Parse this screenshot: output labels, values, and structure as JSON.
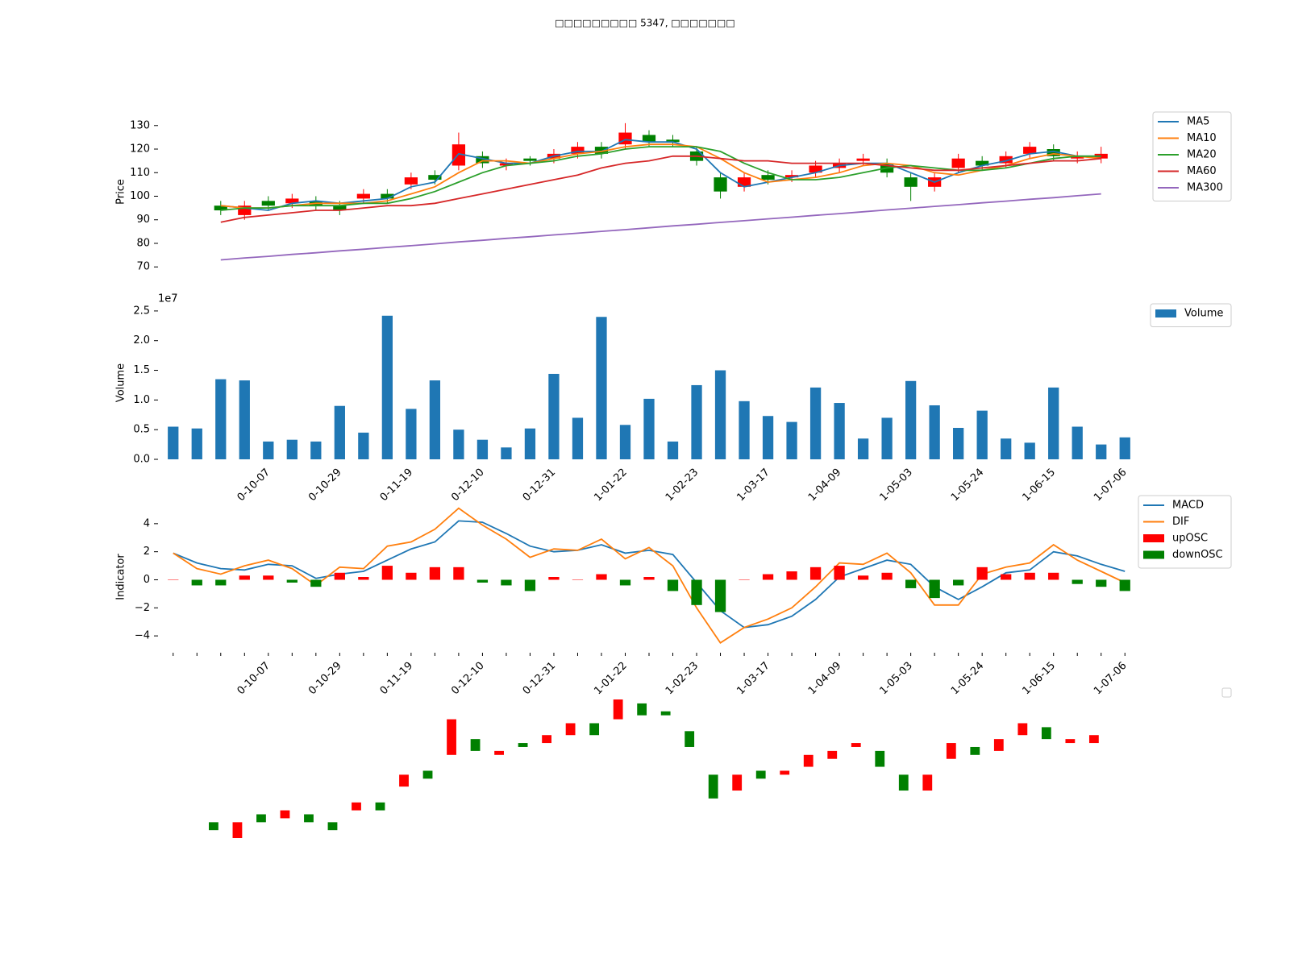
{
  "title": "□□□□□□□□□ 5347, □□□□□□□",
  "chart_data": [
    {
      "type": "candlestick",
      "ylabel": "Price",
      "up_color": "#ff0000",
      "down_color": "#008000",
      "open": [
        null,
        null,
        96,
        92,
        98,
        97,
        98,
        96,
        99,
        101,
        105,
        109,
        113,
        117,
        113,
        116,
        116,
        118,
        121,
        122,
        126,
        124,
        119,
        108,
        104,
        109,
        108,
        110,
        112,
        115,
        114,
        108,
        104,
        112,
        115,
        114,
        118,
        120,
        116,
        116,
        null
      ],
      "high": [
        null,
        null,
        98,
        98,
        100,
        101,
        100,
        98,
        103,
        103,
        110,
        111,
        127,
        119,
        116,
        117,
        120,
        123,
        123,
        131,
        128,
        126,
        121,
        110,
        110,
        111,
        111,
        115,
        116,
        118,
        116,
        110,
        110,
        118,
        117,
        119,
        123,
        122,
        119,
        121,
        null
      ],
      "low": [
        null,
        null,
        92,
        90,
        94,
        95,
        94,
        92,
        97,
        97,
        103,
        105,
        111,
        112,
        111,
        113,
        114,
        116,
        116,
        120,
        121,
        121,
        113,
        99,
        102,
        105,
        106,
        108,
        110,
        113,
        108,
        98,
        102,
        110,
        111,
        112,
        116,
        115,
        114,
        114,
        null
      ],
      "close": [
        null,
        null,
        94,
        96,
        96,
        99,
        96,
        94,
        101,
        99,
        108,
        107,
        122,
        114,
        114,
        115,
        118,
        121,
        118,
        127,
        123,
        123,
        115,
        102,
        108,
        107,
        109,
        113,
        114,
        116,
        110,
        104,
        108,
        116,
        113,
        117,
        121,
        117,
        117,
        118,
        null
      ],
      "series": [
        {
          "name": "MA5",
          "color": "#1f77b4",
          "values": [
            null,
            null,
            96,
            95,
            94,
            97,
            98,
            97,
            98,
            99,
            104,
            106,
            118,
            116,
            114,
            114,
            117,
            119,
            119,
            124,
            123,
            123,
            120,
            110,
            104,
            106,
            108,
            110,
            113,
            114,
            114,
            110,
            106,
            110,
            113,
            115,
            118,
            119,
            117,
            117,
            null
          ]
        },
        {
          "name": "MA10",
          "color": "#ff7f0e",
          "values": [
            null,
            null,
            96,
            95,
            95,
            96,
            97,
            97,
            97,
            98,
            101,
            104,
            110,
            115,
            115,
            114,
            116,
            118,
            119,
            121,
            122,
            122,
            121,
            116,
            110,
            106,
            107,
            108,
            110,
            113,
            114,
            113,
            110,
            109,
            111,
            113,
            116,
            118,
            117,
            116,
            null
          ]
        },
        {
          "name": "MA20",
          "color": "#2ca02c",
          "values": [
            null,
            null,
            94,
            95,
            95,
            96,
            96,
            96,
            97,
            97,
            99,
            102,
            106,
            110,
            113,
            114,
            115,
            117,
            118,
            120,
            121,
            121,
            121,
            119,
            114,
            110,
            107,
            107,
            108,
            110,
            112,
            113,
            112,
            111,
            111,
            112,
            114,
            116,
            117,
            117,
            null
          ]
        },
        {
          "name": "MA60",
          "color": "#d62728",
          "values": [
            null,
            null,
            89,
            91,
            92,
            93,
            94,
            94,
            95,
            96,
            96,
            97,
            99,
            101,
            103,
            105,
            107,
            109,
            112,
            114,
            115,
            117,
            117,
            116,
            115,
            115,
            114,
            114,
            114,
            114,
            113,
            112,
            111,
            111,
            112,
            113,
            114,
            115,
            115,
            116,
            null
          ]
        },
        {
          "name": "MA300",
          "color": "#9467bd",
          "values": [
            null,
            null,
            73,
            73.8,
            74.5,
            75.3,
            76,
            76.8,
            77.5,
            78.3,
            79,
            79.8,
            80.6,
            81.3,
            82.1,
            82.8,
            83.6,
            84.3,
            85.1,
            85.8,
            86.6,
            87.4,
            88.1,
            88.9,
            89.6,
            90.4,
            91.1,
            91.9,
            92.6,
            93.4,
            94.2,
            94.9,
            95.7,
            96.4,
            97.2,
            97.9,
            98.7,
            99.4,
            100.2,
            101,
            null
          ]
        }
      ],
      "ylim": [
        67,
        133
      ],
      "yticks": [
        70,
        80,
        90,
        100,
        110,
        120,
        130
      ],
      "legend": "upper right"
    },
    {
      "type": "bar",
      "ylabel": "Volume",
      "offset_label": "1e7",
      "categories": [
        null,
        null,
        null,
        null,
        "0-10-07",
        null,
        null,
        "0-10-29",
        null,
        null,
        "0-11-19",
        null,
        null,
        "0-12-10",
        null,
        null,
        "0-12-31",
        null,
        null,
        "1-01-22",
        null,
        null,
        "1-02-23",
        null,
        null,
        "1-03-17",
        null,
        null,
        "1-04-09",
        null,
        null,
        "1-05-03",
        null,
        null,
        "1-05-24",
        null,
        null,
        "1-06-15",
        null,
        null,
        "1-07-06"
      ],
      "series": [
        {
          "name": "Volume",
          "color": "#1f77b4",
          "values": [
            5500000,
            5200000,
            13500000,
            13300000,
            3000000,
            3300000,
            3000000,
            9000000,
            4500000,
            24200000,
            8500000,
            13300000,
            5000000,
            3300000,
            2000000,
            5200000,
            14400000,
            7000000,
            24000000,
            5800000,
            10200000,
            3000000,
            12500000,
            15000000,
            9800000,
            7300000,
            6300000,
            12100000,
            9500000,
            3500000,
            7000000,
            13200000,
            9100000,
            5300000,
            8200000,
            3500000,
            2800000,
            12100000,
            5500000,
            2500000,
            3700000
          ]
        }
      ],
      "ylim": [
        0,
        25800000
      ],
      "yticks": [
        {
          "value": 0,
          "label": "0.0"
        },
        {
          "value": 5000000,
          "label": "0.5"
        },
        {
          "value": 10000000,
          "label": "1.0"
        },
        {
          "value": 15000000,
          "label": "1.5"
        },
        {
          "value": 20000000,
          "label": "2.0"
        },
        {
          "value": 25000000,
          "label": "2.5"
        }
      ],
      "legend": "upper right"
    },
    {
      "type": "macd",
      "ylabel": "Indicator",
      "categories": [
        null,
        null,
        null,
        null,
        "0-10-07",
        null,
        null,
        "0-10-29",
        null,
        null,
        "0-11-19",
        null,
        null,
        "0-12-10",
        null,
        null,
        "0-12-31",
        null,
        null,
        "1-01-22",
        null,
        null,
        "1-02-23",
        null,
        null,
        "1-03-17",
        null,
        null,
        "1-04-09",
        null,
        null,
        "1-05-03",
        null,
        null,
        "1-05-24",
        null,
        null,
        "1-06-15",
        null,
        null,
        "1-07-06"
      ],
      "series": [
        {
          "name": "MACD",
          "color": "#1f77b4",
          "kind": "line",
          "values": [
            1.9,
            1.2,
            0.8,
            0.7,
            1.1,
            1.0,
            0.1,
            0.4,
            0.6,
            1.4,
            2.2,
            2.7,
            4.2,
            4.1,
            3.3,
            2.4,
            2.0,
            2.1,
            2.5,
            1.9,
            2.1,
            1.8,
            -0.2,
            -2.2,
            -3.4,
            -3.2,
            -2.6,
            -1.4,
            0.2,
            0.8,
            1.4,
            1.1,
            -0.5,
            -1.4,
            -0.5,
            0.5,
            0.7,
            2.0,
            1.7,
            1.1,
            0.6
          ]
        },
        {
          "name": "DIF",
          "color": "#ff7f0e",
          "kind": "line",
          "values": [
            1.9,
            0.8,
            0.4,
            1.0,
            1.4,
            0.8,
            -0.4,
            0.9,
            0.8,
            2.4,
            2.7,
            3.6,
            5.1,
            3.9,
            2.9,
            1.6,
            2.2,
            2.1,
            2.9,
            1.5,
            2.3,
            1.0,
            -2.0,
            -4.5,
            -3.4,
            -2.8,
            -2.0,
            -0.5,
            1.2,
            1.1,
            1.9,
            0.5,
            -1.8,
            -1.8,
            0.4,
            0.9,
            1.2,
            2.5,
            1.4,
            0.6,
            -0.2
          ]
        },
        {
          "name": "upOSC",
          "color": "#ff0000",
          "kind": "bar",
          "values": [
            0,
            null,
            null,
            0.3,
            0.3,
            null,
            null,
            0.5,
            0.2,
            1.0,
            0.5,
            0.9,
            0.9,
            null,
            null,
            null,
            0.2,
            0,
            0.4,
            null,
            0.2,
            null,
            null,
            null,
            0,
            0.4,
            0.6,
            0.9,
            1.0,
            0.3,
            0.5,
            null,
            null,
            null,
            0.9,
            0.4,
            0.5,
            0.5,
            null,
            null,
            null
          ]
        },
        {
          "name": "downOSC",
          "color": "#008000",
          "kind": "bar",
          "values": [
            null,
            -0.4,
            -0.4,
            null,
            null,
            -0.2,
            -0.5,
            null,
            null,
            null,
            null,
            null,
            null,
            -0.2,
            -0.4,
            -0.8,
            null,
            null,
            null,
            -0.4,
            null,
            -0.8,
            -1.8,
            -2.3,
            null,
            null,
            null,
            null,
            null,
            null,
            null,
            -0.6,
            -1.3,
            -0.4,
            null,
            null,
            null,
            null,
            -0.3,
            -0.5,
            -0.8
          ]
        }
      ],
      "ylim": [
        -5.2,
        5.6
      ],
      "yticks": [
        {
          "value": -4,
          "label": "−4"
        },
        {
          "value": -2,
          "label": "−2"
        },
        0,
        2,
        4
      ],
      "legend": "upper right"
    },
    {
      "type": "body"
    }
  ]
}
